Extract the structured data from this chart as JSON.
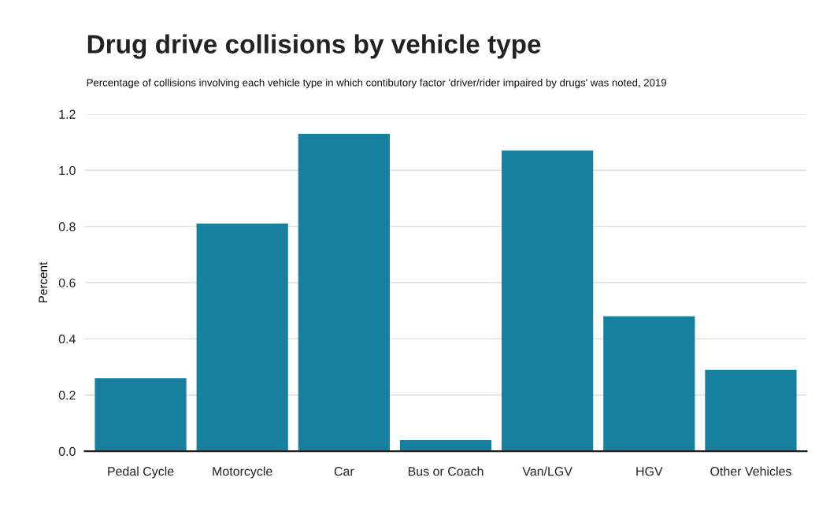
{
  "chart_data": {
    "type": "bar",
    "title": "Drug drive collisions by vehicle type",
    "subtitle": "Percentage of collisions involving each vehicle type in which contibutory factor 'driver/rider impaired by drugs' was noted, 2019",
    "ylabel": "Percent",
    "categories": [
      "Pedal Cycle",
      "Motorcycle",
      "Car",
      "Bus or Coach",
      "Van/LGV",
      "HGV",
      "Other Vehicles"
    ],
    "values": [
      0.26,
      0.81,
      1.13,
      0.04,
      1.07,
      0.48,
      0.29
    ],
    "color": "#17809f",
    "ylim": [
      0,
      1.2
    ],
    "yticks": [
      {
        "value": 0,
        "label": "0.0"
      },
      {
        "value": 0.2,
        "label": "0.2"
      },
      {
        "value": 0.4,
        "label": "0.4"
      },
      {
        "value": 0.6,
        "label": "0.6"
      },
      {
        "value": 0.8,
        "label": "0.8"
      },
      {
        "value": 1.0,
        "label": "1.0"
      },
      {
        "value": 1.2,
        "label": "1.2"
      }
    ],
    "grid": "y"
  }
}
